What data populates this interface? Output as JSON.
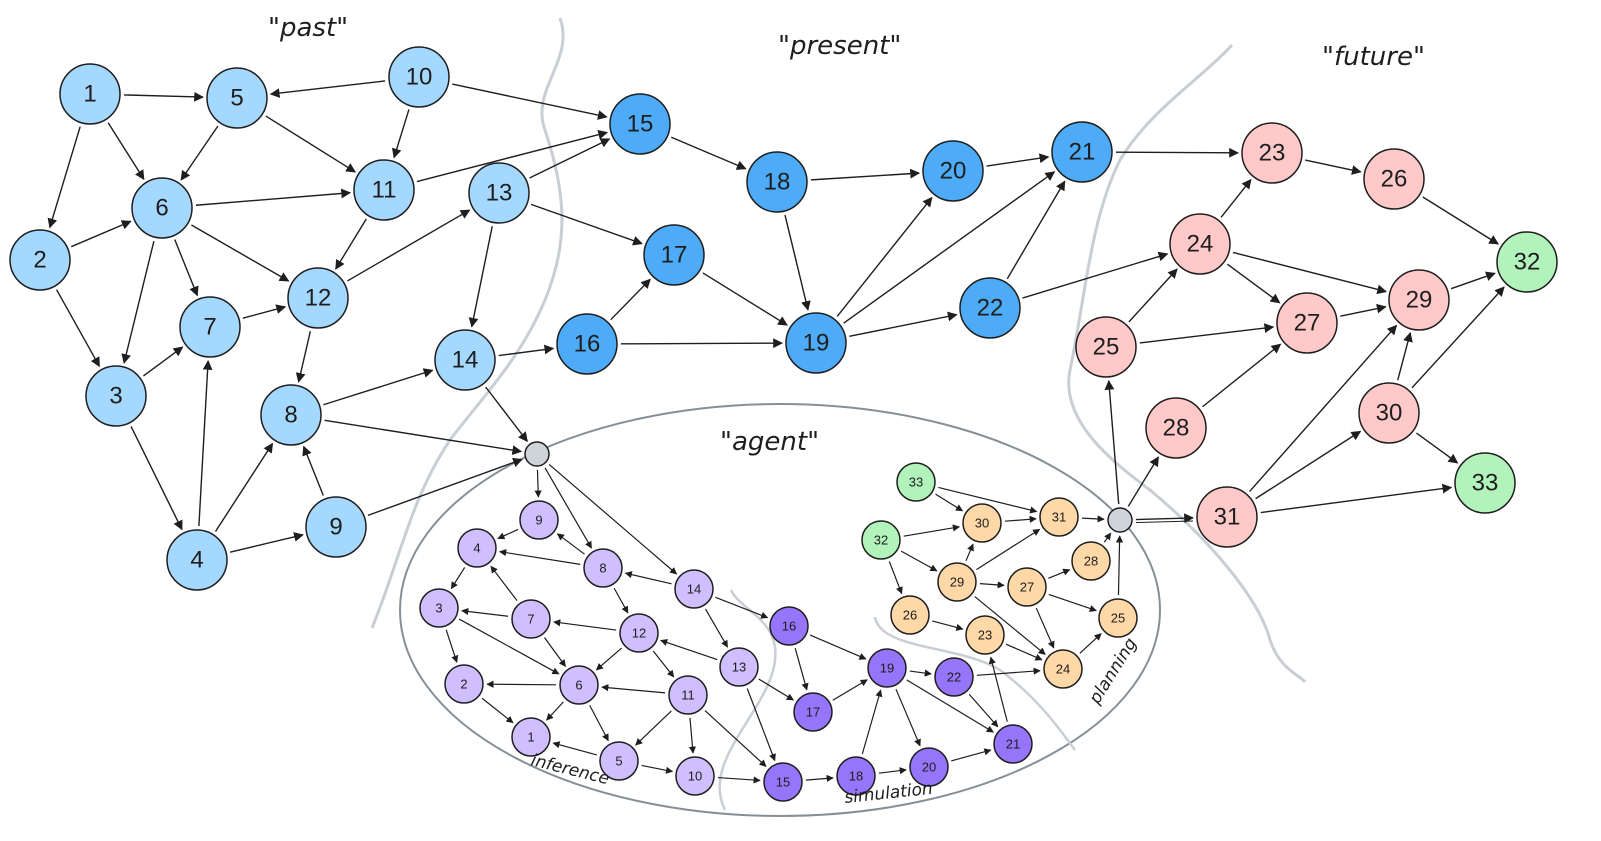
{
  "labels": {
    "past": "\"past\"",
    "present": "\"present\"",
    "future": "\"future\"",
    "agent": "\"agent\"",
    "inference": "inference",
    "simulation": "simulation",
    "planning": "planning"
  },
  "colors": {
    "past": "#a5d8ff",
    "present": "#4dabf7",
    "future": "#ffc9c9",
    "goal": "#b2f2bb",
    "inference": "#d0bfff",
    "simulation": "#9775fa",
    "planning": "#ffd8a8",
    "hub": "#ced4da",
    "separator": "#c9ced4",
    "ellipse": "#868e96",
    "edge": "#1e1e1e"
  },
  "world": {
    "nodes": [
      {
        "id": "1",
        "group": "past"
      },
      {
        "id": "2",
        "group": "past"
      },
      {
        "id": "3",
        "group": "past"
      },
      {
        "id": "4",
        "group": "past"
      },
      {
        "id": "5",
        "group": "past"
      },
      {
        "id": "6",
        "group": "past"
      },
      {
        "id": "7",
        "group": "past"
      },
      {
        "id": "8",
        "group": "past"
      },
      {
        "id": "9",
        "group": "past"
      },
      {
        "id": "10",
        "group": "past"
      },
      {
        "id": "11",
        "group": "past"
      },
      {
        "id": "12",
        "group": "past"
      },
      {
        "id": "13",
        "group": "past"
      },
      {
        "id": "14",
        "group": "past"
      },
      {
        "id": "15",
        "group": "present"
      },
      {
        "id": "16",
        "group": "present"
      },
      {
        "id": "17",
        "group": "present"
      },
      {
        "id": "18",
        "group": "present"
      },
      {
        "id": "19",
        "group": "present"
      },
      {
        "id": "20",
        "group": "present"
      },
      {
        "id": "21",
        "group": "present"
      },
      {
        "id": "22",
        "group": "present"
      },
      {
        "id": "23",
        "group": "future"
      },
      {
        "id": "24",
        "group": "future"
      },
      {
        "id": "25",
        "group": "future"
      },
      {
        "id": "26",
        "group": "future"
      },
      {
        "id": "27",
        "group": "future"
      },
      {
        "id": "28",
        "group": "future"
      },
      {
        "id": "29",
        "group": "future"
      },
      {
        "id": "30",
        "group": "future"
      },
      {
        "id": "31",
        "group": "future"
      },
      {
        "id": "32",
        "group": "goal"
      },
      {
        "id": "33",
        "group": "goal"
      }
    ],
    "edges": [
      [
        "1",
        "5"
      ],
      [
        "1",
        "6"
      ],
      [
        "1",
        "2"
      ],
      [
        "10",
        "5"
      ],
      [
        "10",
        "11"
      ],
      [
        "10",
        "15"
      ],
      [
        "5",
        "6"
      ],
      [
        "5",
        "11"
      ],
      [
        "6",
        "11"
      ],
      [
        "6",
        "12"
      ],
      [
        "6",
        "7"
      ],
      [
        "6",
        "3"
      ],
      [
        "2",
        "6"
      ],
      [
        "2",
        "3"
      ],
      [
        "3",
        "7"
      ],
      [
        "3",
        "4"
      ],
      [
        "4",
        "7"
      ],
      [
        "4",
        "8"
      ],
      [
        "4",
        "9"
      ],
      [
        "9",
        "8"
      ],
      [
        "7",
        "12"
      ],
      [
        "11",
        "12"
      ],
      [
        "11",
        "15"
      ],
      [
        "12",
        "13"
      ],
      [
        "12",
        "8"
      ],
      [
        "13",
        "15"
      ],
      [
        "13",
        "17"
      ],
      [
        "13",
        "14"
      ],
      [
        "8",
        "14"
      ],
      [
        "8",
        "in"
      ],
      [
        "9",
        "in"
      ],
      [
        "14",
        "in"
      ],
      [
        "14",
        "16"
      ],
      [
        "16",
        "17"
      ],
      [
        "16",
        "19"
      ],
      [
        "17",
        "19"
      ],
      [
        "15",
        "18"
      ],
      [
        "18",
        "20"
      ],
      [
        "18",
        "19"
      ],
      [
        "19",
        "20"
      ],
      [
        "19",
        "21"
      ],
      [
        "19",
        "22"
      ],
      [
        "20",
        "21"
      ],
      [
        "22",
        "21"
      ],
      [
        "22",
        "24"
      ],
      [
        "21",
        "23"
      ],
      [
        "23",
        "26"
      ],
      [
        "24",
        "23"
      ],
      [
        "24",
        "29"
      ],
      [
        "24",
        "27"
      ],
      [
        "25",
        "24"
      ],
      [
        "25",
        "27"
      ],
      [
        "28",
        "27"
      ],
      [
        "26",
        "32"
      ],
      [
        "27",
        "29"
      ],
      [
        "29",
        "32"
      ],
      [
        "30",
        "29"
      ],
      [
        "30",
        "32"
      ],
      [
        "30",
        "33"
      ],
      [
        "31",
        "29"
      ],
      [
        "31",
        "30"
      ],
      [
        "31",
        "33"
      ],
      [
        "out",
        "25"
      ],
      [
        "out",
        "28"
      ],
      [
        "out",
        "31"
      ]
    ]
  },
  "agent": {
    "nodes": [
      {
        "id": "1",
        "group": "inference"
      },
      {
        "id": "2",
        "group": "inference"
      },
      {
        "id": "3",
        "group": "inference"
      },
      {
        "id": "4",
        "group": "inference"
      },
      {
        "id": "5",
        "group": "inference"
      },
      {
        "id": "6",
        "group": "inference"
      },
      {
        "id": "7",
        "group": "inference"
      },
      {
        "id": "8",
        "group": "inference"
      },
      {
        "id": "9",
        "group": "inference"
      },
      {
        "id": "10",
        "group": "inference"
      },
      {
        "id": "11",
        "group": "inference"
      },
      {
        "id": "12",
        "group": "inference"
      },
      {
        "id": "13",
        "group": "inference"
      },
      {
        "id": "14",
        "group": "inference"
      },
      {
        "id": "15",
        "group": "simulation"
      },
      {
        "id": "16",
        "group": "simulation"
      },
      {
        "id": "17",
        "group": "simulation"
      },
      {
        "id": "18",
        "group": "simulation"
      },
      {
        "id": "19",
        "group": "simulation"
      },
      {
        "id": "20",
        "group": "simulation"
      },
      {
        "id": "21",
        "group": "simulation"
      },
      {
        "id": "22",
        "group": "simulation"
      },
      {
        "id": "23",
        "group": "planning"
      },
      {
        "id": "24",
        "group": "planning"
      },
      {
        "id": "25",
        "group": "planning"
      },
      {
        "id": "26",
        "group": "planning"
      },
      {
        "id": "27",
        "group": "planning"
      },
      {
        "id": "28",
        "group": "planning"
      },
      {
        "id": "29",
        "group": "planning"
      },
      {
        "id": "30",
        "group": "planning"
      },
      {
        "id": "31",
        "group": "planning"
      },
      {
        "id": "32",
        "group": "goal"
      },
      {
        "id": "33",
        "group": "goal"
      }
    ],
    "edges": [
      [
        "in",
        "9"
      ],
      [
        "in",
        "8"
      ],
      [
        "in",
        "14"
      ],
      [
        "9",
        "4"
      ],
      [
        "8",
        "9"
      ],
      [
        "8",
        "4"
      ],
      [
        "8",
        "12"
      ],
      [
        "14",
        "8"
      ],
      [
        "14",
        "16"
      ],
      [
        "14",
        "13"
      ],
      [
        "4",
        "3"
      ],
      [
        "7",
        "4"
      ],
      [
        "7",
        "3"
      ],
      [
        "7",
        "6"
      ],
      [
        "3",
        "2"
      ],
      [
        "3",
        "6"
      ],
      [
        "12",
        "7"
      ],
      [
        "12",
        "6"
      ],
      [
        "12",
        "11"
      ],
      [
        "13",
        "12"
      ],
      [
        "13",
        "17"
      ],
      [
        "13",
        "15"
      ],
      [
        "6",
        "2"
      ],
      [
        "6",
        "1"
      ],
      [
        "6",
        "5"
      ],
      [
        "11",
        "6"
      ],
      [
        "11",
        "5"
      ],
      [
        "11",
        "10"
      ],
      [
        "11",
        "15"
      ],
      [
        "2",
        "1"
      ],
      [
        "5",
        "1"
      ],
      [
        "5",
        "10"
      ],
      [
        "10",
        "15"
      ],
      [
        "16",
        "19"
      ],
      [
        "16",
        "17"
      ],
      [
        "17",
        "19"
      ],
      [
        "15",
        "18"
      ],
      [
        "18",
        "19"
      ],
      [
        "18",
        "20"
      ],
      [
        "19",
        "22"
      ],
      [
        "19",
        "20"
      ],
      [
        "19",
        "21"
      ],
      [
        "22",
        "21"
      ],
      [
        "22",
        "24"
      ],
      [
        "20",
        "21"
      ],
      [
        "21",
        "23"
      ],
      [
        "33",
        "30"
      ],
      [
        "33",
        "31"
      ],
      [
        "32",
        "30"
      ],
      [
        "32",
        "29"
      ],
      [
        "32",
        "26"
      ],
      [
        "30",
        "31"
      ],
      [
        "29",
        "30"
      ],
      [
        "29",
        "31"
      ],
      [
        "29",
        "27"
      ],
      [
        "29",
        "24"
      ],
      [
        "27",
        "28"
      ],
      [
        "27",
        "25"
      ],
      [
        "27",
        "24"
      ],
      [
        "26",
        "23"
      ],
      [
        "23",
        "24"
      ],
      [
        "24",
        "25"
      ],
      [
        "31",
        "out"
      ],
      [
        "28",
        "out"
      ],
      [
        "25",
        "out"
      ]
    ]
  }
}
